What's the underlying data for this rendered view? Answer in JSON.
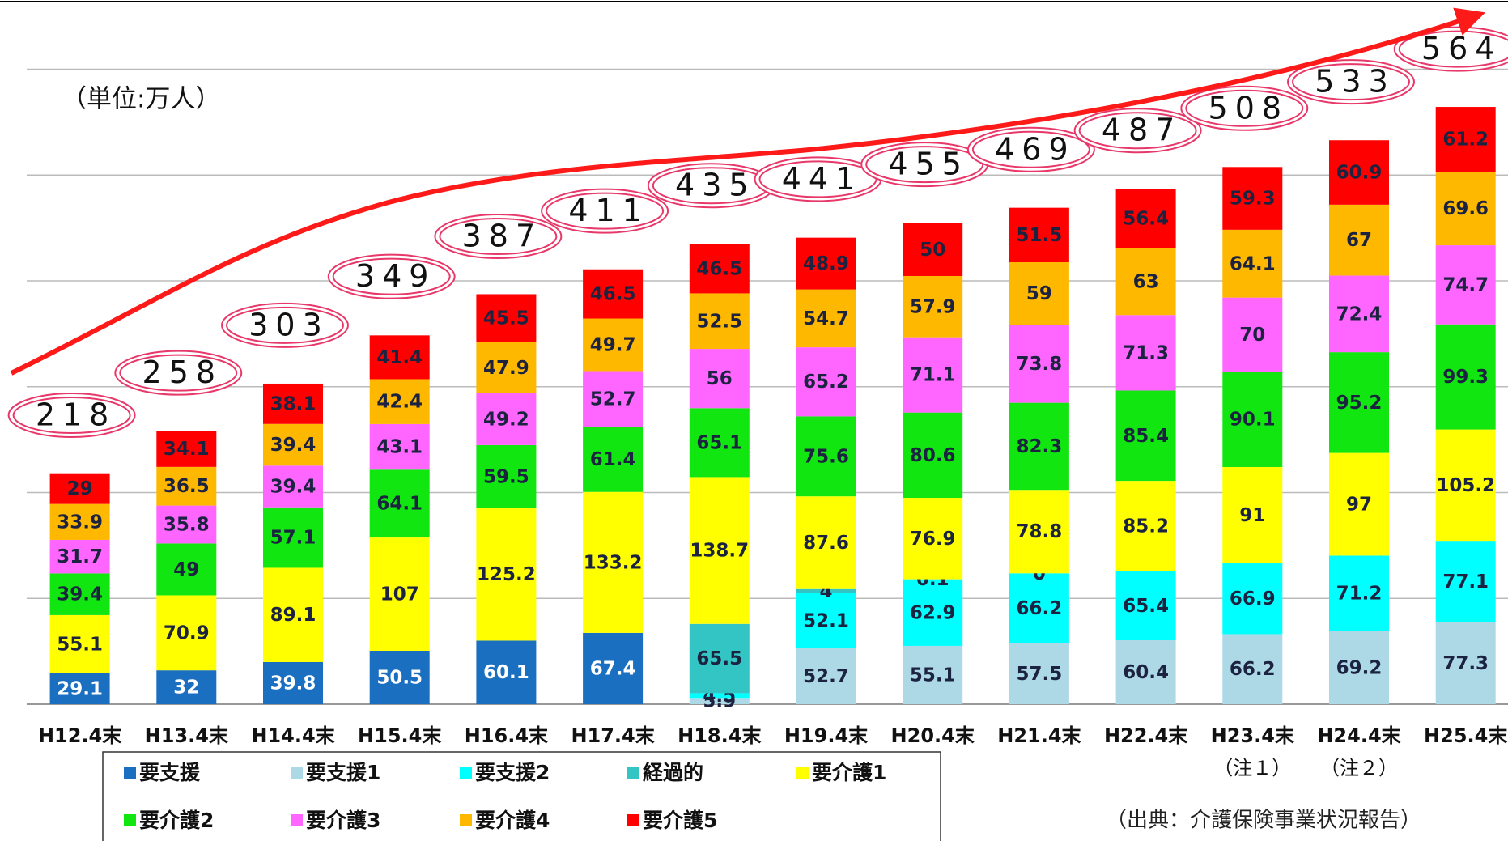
{
  "chart_data": {
    "type": "stacked_bar",
    "unit_label": "（単位:万人）",
    "source": "（出典：介護保険事業状況報告）",
    "categories": [
      "H12.4末",
      "H13.4末",
      "H14.4末",
      "H15.4末",
      "H16.4末",
      "H17.4末",
      "H18.4末",
      "H19.4末",
      "H20.4末",
      "H21.4末",
      "H22.4末",
      "H23.4末",
      "H24.4末",
      "H25.4末"
    ],
    "category_notes": [
      null,
      null,
      null,
      null,
      null,
      null,
      null,
      null,
      null,
      null,
      null,
      "（注１）",
      "（注２）",
      null
    ],
    "totals": [
      218,
      258,
      303,
      349,
      387,
      411,
      435,
      441,
      455,
      469,
      487,
      508,
      533,
      564
    ],
    "ylim": [
      0,
      600
    ],
    "yticks": [
      0,
      100,
      200,
      300,
      400,
      500,
      600
    ],
    "grid": true,
    "series": [
      {
        "name": "要支援",
        "color": "#1a6fc0",
        "values": [
          29.1,
          32,
          39.8,
          50.5,
          60.1,
          67.4,
          null,
          null,
          null,
          null,
          null,
          null,
          null,
          null
        ]
      },
      {
        "name": "要支援1",
        "color": "#add8e6",
        "values": [
          null,
          null,
          null,
          null,
          null,
          null,
          5.9,
          52.7,
          55.1,
          57.5,
          60.4,
          66.2,
          69.2,
          77.3
        ]
      },
      {
        "name": "要支援2",
        "color": "#00ffff",
        "values": [
          null,
          null,
          null,
          null,
          null,
          null,
          4.5,
          52.1,
          62.9,
          66.2,
          65.4,
          66.9,
          71.2,
          77.1
        ]
      },
      {
        "name": "経過的",
        "color": "#33c4c4",
        "values": [
          null,
          null,
          null,
          null,
          null,
          null,
          65.5,
          4,
          0.1,
          0,
          null,
          null,
          null,
          null
        ]
      },
      {
        "name": "要介護1",
        "color": "#ffff00",
        "values": [
          55.1,
          70.9,
          89.1,
          107,
          125.2,
          133.2,
          138.7,
          87.6,
          76.9,
          78.8,
          85.2,
          91,
          97,
          105.2
        ]
      },
      {
        "name": "要介護2",
        "color": "#11e611",
        "values": [
          39.4,
          49,
          57.1,
          64.1,
          59.5,
          61.4,
          65.1,
          75.6,
          80.6,
          82.3,
          85.4,
          90.1,
          95.2,
          99.3
        ]
      },
      {
        "name": "要介護3",
        "color": "#ff66ff",
        "values": [
          31.7,
          35.8,
          39.4,
          43.1,
          49.2,
          52.7,
          56,
          65.2,
          71.1,
          73.8,
          71.3,
          70,
          72.4,
          74.7
        ]
      },
      {
        "name": "要介護4",
        "color": "#ffb800",
        "values": [
          33.9,
          36.5,
          39.4,
          42.4,
          47.9,
          49.7,
          52.5,
          54.7,
          57.9,
          59,
          63,
          64.1,
          67,
          69.6
        ]
      },
      {
        "name": "要介護5",
        "color": "#ff0000",
        "values": [
          29,
          34.1,
          38.1,
          41.4,
          45.5,
          46.5,
          46.5,
          48.9,
          50,
          51.5,
          56.4,
          59.3,
          60.9,
          61.2
        ]
      }
    ]
  }
}
